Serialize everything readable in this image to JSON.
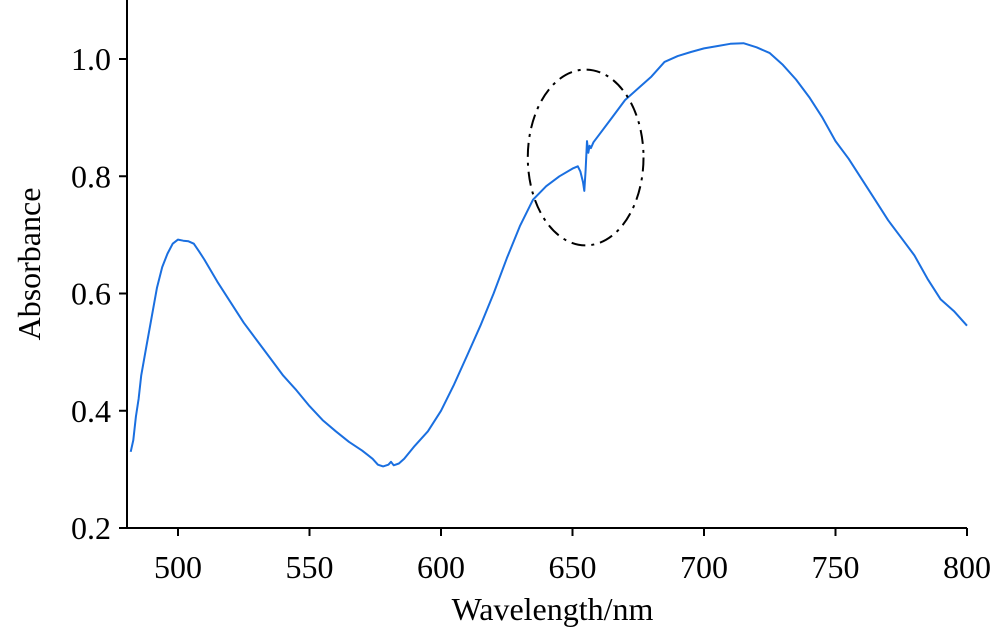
{
  "chart_data": {
    "type": "line",
    "xlabel": "Wavelength/nm",
    "ylabel": "Absorbance",
    "xlim": [
      480,
      800
    ],
    "ylim": [
      0.2,
      1.1
    ],
    "x_ticks": [
      500,
      550,
      600,
      650,
      700,
      750,
      800
    ],
    "y_ticks": [
      0.2,
      0.4,
      0.6,
      0.8,
      1.0
    ],
    "x_tick_labels": [
      "500",
      "550",
      "600",
      "650",
      "700",
      "750",
      "800"
    ],
    "y_tick_labels": [
      "0.2",
      "0.4",
      "0.6",
      "0.8",
      "1.0"
    ],
    "grid": false,
    "line_color": "#1a6fe0",
    "annotation_color": "#000000",
    "series": [
      {
        "x": [
          482,
          483,
          484,
          485,
          486,
          488,
          490,
          492,
          494,
          496,
          498,
          500,
          502,
          504,
          506,
          508,
          510,
          515,
          520,
          525,
          530,
          535,
          540,
          545,
          550,
          555,
          560,
          565,
          570,
          572,
          574,
          576,
          578,
          580,
          581,
          582,
          584,
          586,
          590,
          595,
          600,
          605,
          610,
          615,
          620,
          625,
          630,
          635,
          640,
          645,
          650,
          652,
          653,
          654,
          654.5,
          655,
          655.5,
          656,
          656.5,
          657,
          658,
          660,
          665,
          670,
          675,
          680,
          685,
          690,
          695,
          700,
          705,
          710,
          715,
          720,
          725,
          730,
          735,
          740,
          745,
          750,
          755,
          760,
          765,
          770,
          775,
          780,
          785,
          790,
          795,
          800
        ],
        "y": [
          0.33,
          0.35,
          0.39,
          0.42,
          0.46,
          0.51,
          0.56,
          0.61,
          0.645,
          0.668,
          0.685,
          0.692,
          0.69,
          0.689,
          0.685,
          0.672,
          0.658,
          0.62,
          0.585,
          0.55,
          0.52,
          0.49,
          0.46,
          0.435,
          0.408,
          0.384,
          0.365,
          0.347,
          0.332,
          0.325,
          0.318,
          0.308,
          0.305,
          0.308,
          0.313,
          0.307,
          0.31,
          0.318,
          0.34,
          0.365,
          0.4,
          0.445,
          0.495,
          0.545,
          0.6,
          0.66,
          0.715,
          0.76,
          0.783,
          0.8,
          0.813,
          0.817,
          0.808,
          0.79,
          0.775,
          0.81,
          0.86,
          0.84,
          0.852,
          0.848,
          0.858,
          0.87,
          0.9,
          0.93,
          0.95,
          0.97,
          0.995,
          1.005,
          1.012,
          1.018,
          1.022,
          1.026,
          1.027,
          1.02,
          1.01,
          0.99,
          0.965,
          0.935,
          0.9,
          0.86,
          0.83,
          0.795,
          0.76,
          0.725,
          0.695,
          0.665,
          0.625,
          0.59,
          0.57,
          0.545
        ]
      }
    ],
    "annotations": [
      {
        "type": "ellipse",
        "style": "dash-dot",
        "cx": 655,
        "cy": 0.832,
        "rx": 22,
        "ry": 0.15
      }
    ]
  }
}
